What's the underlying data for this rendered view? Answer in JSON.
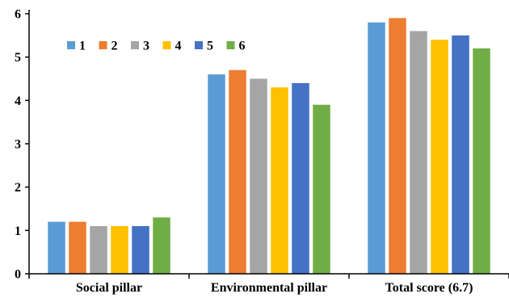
{
  "chart_data": {
    "type": "bar",
    "title": "",
    "xlabel": "",
    "ylabel": "",
    "categories": [
      "Social pillar",
      "Environmental pillar",
      "Total score (6.7)"
    ],
    "ylim": [
      0,
      6
    ],
    "yticks": [
      "0",
      "1",
      "2",
      "3",
      "4",
      "5",
      "6"
    ],
    "grid": false,
    "legend_position": "top-left",
    "series": [
      {
        "name": "1",
        "color": "#5B9BD5",
        "values": [
          1.2,
          4.6,
          5.8
        ]
      },
      {
        "name": "2",
        "color": "#ED7D31",
        "values": [
          1.2,
          4.7,
          5.9
        ]
      },
      {
        "name": "3",
        "color": "#A5A5A5",
        "values": [
          1.1,
          4.5,
          5.6
        ]
      },
      {
        "name": "4",
        "color": "#FFC000",
        "values": [
          1.1,
          4.3,
          5.4
        ]
      },
      {
        "name": "5",
        "color": "#4472C4",
        "values": [
          1.1,
          4.4,
          5.5
        ]
      },
      {
        "name": "6",
        "color": "#70AD47",
        "values": [
          1.3,
          3.9,
          5.2
        ]
      }
    ]
  }
}
